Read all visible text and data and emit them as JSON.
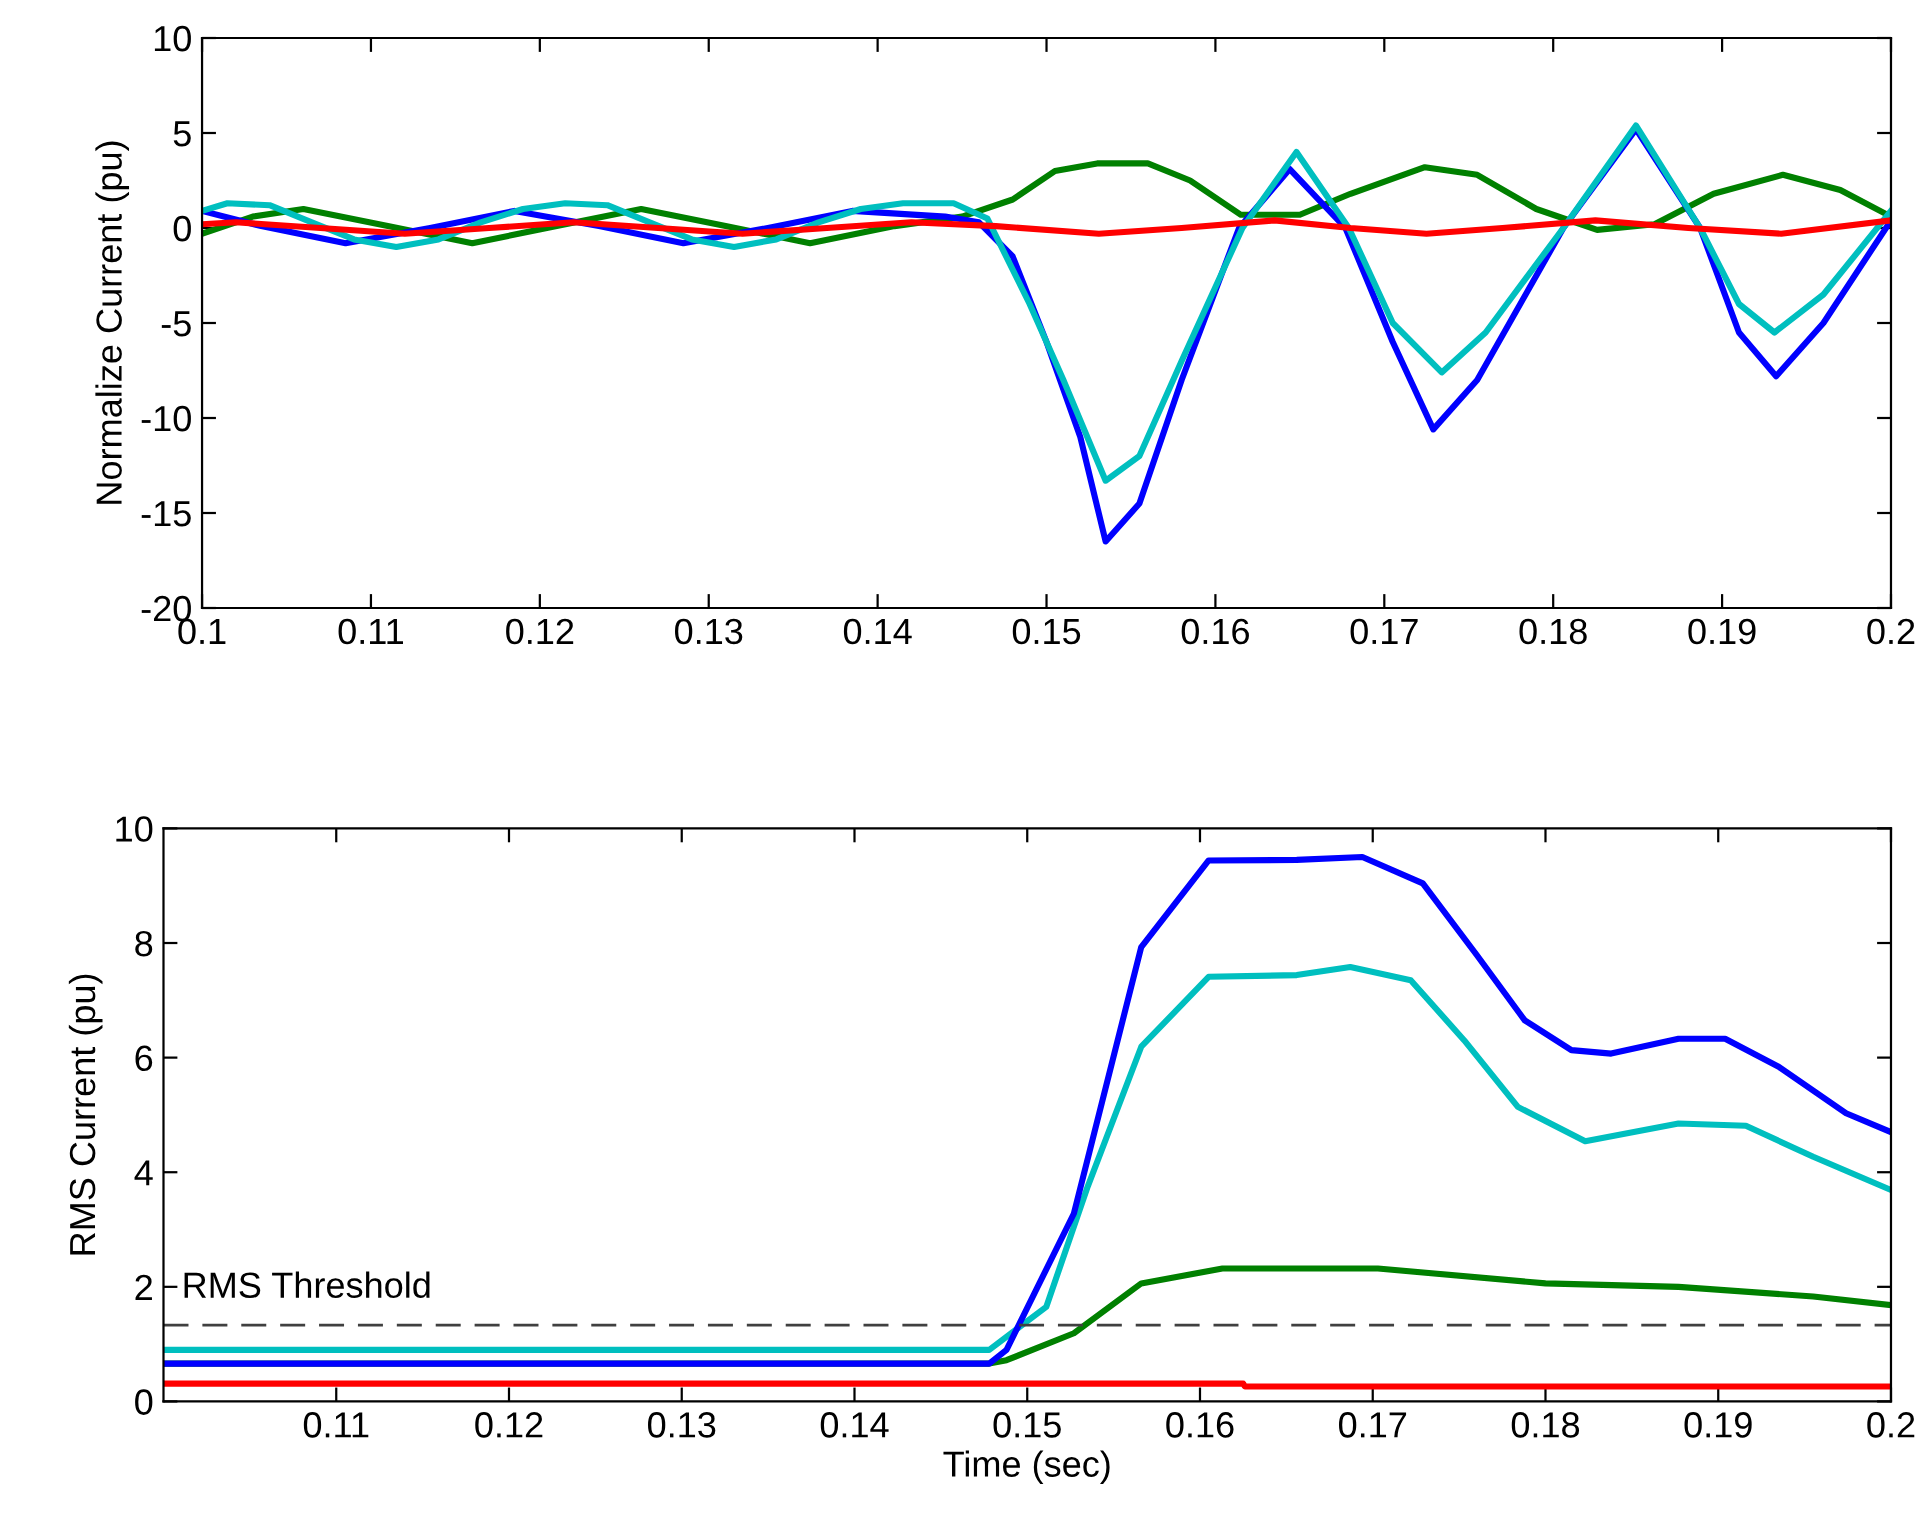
{
  "chart_data": [
    {
      "type": "line",
      "ylabel": "Normalize Current (pu)",
      "xlim": [
        0.1,
        0.2
      ],
      "ylim": [
        -20,
        10
      ],
      "xticks": [
        0.1,
        0.11,
        0.12,
        0.13,
        0.14,
        0.15,
        0.16,
        0.17,
        0.18,
        0.19,
        0.2
      ],
      "yticks": [
        -20,
        -15,
        -10,
        -5,
        0,
        5,
        10
      ],
      "grid": false,
      "legend": false,
      "line_style": "solid",
      "marker": "none",
      "series": [
        {
          "color": "#008000",
          "x": [
            0.1,
            0.103,
            0.106,
            0.111,
            0.116,
            0.121,
            0.126,
            0.131,
            0.136,
            0.141,
            0.145,
            0.148,
            0.1505,
            0.153,
            0.156,
            0.1585,
            0.1615,
            0.165,
            0.168,
            0.1724,
            0.1755,
            0.179,
            0.1826,
            0.186,
            0.1895,
            0.1936,
            0.197,
            0.2
          ],
          "values": [
            -0.3,
            0.6,
            1.0,
            0.1,
            -0.8,
            0.1,
            1.0,
            0.1,
            -0.8,
            0.1,
            0.6,
            1.5,
            3.0,
            3.4,
            3.4,
            2.5,
            0.7,
            0.7,
            1.8,
            3.2,
            2.8,
            1.0,
            -0.1,
            0.2,
            1.8,
            2.8,
            2.0,
            0.6
          ]
        },
        {
          "color": "#0000ff",
          "x": [
            0.1,
            0.1035,
            0.1085,
            0.1135,
            0.1185,
            0.1235,
            0.1285,
            0.1335,
            0.1385,
            0.144,
            0.146,
            0.148,
            0.15,
            0.152,
            0.1535,
            0.1555,
            0.158,
            0.1614,
            0.1644,
            0.1677,
            0.1705,
            0.1729,
            0.1755,
            0.1806,
            0.1849,
            0.1887,
            0.191,
            0.1932,
            0.196,
            0.2
          ],
          "values": [
            0.9,
            0.1,
            -0.8,
            0,
            0.9,
            0.1,
            -0.8,
            0,
            0.9,
            0.6,
            0.3,
            -1.5,
            -6,
            -11,
            -16.5,
            -14.5,
            -8,
            0,
            3.1,
            0,
            -6,
            -10.6,
            -8,
            0,
            5.2,
            0,
            -5.5,
            -7.8,
            -5,
            0.4
          ]
        },
        {
          "color": "#00bfbf",
          "x": [
            0.1,
            0.1015,
            0.104,
            0.1065,
            0.109,
            0.1115,
            0.114,
            0.1165,
            0.119,
            0.1215,
            0.124,
            0.1265,
            0.129,
            0.1315,
            0.134,
            0.1365,
            0.139,
            0.1415,
            0.1445,
            0.1465,
            0.149,
            0.151,
            0.1535,
            0.1555,
            0.158,
            0.1616,
            0.1648,
            0.1679,
            0.1705,
            0.1734,
            0.176,
            0.1806,
            0.1849,
            0.1887,
            0.191,
            0.1931,
            0.196,
            0.2
          ],
          "values": [
            0.9,
            1.3,
            1.2,
            0.3,
            -0.6,
            -1.0,
            -0.6,
            0.3,
            1.0,
            1.3,
            1.2,
            0.3,
            -0.6,
            -1.0,
            -0.6,
            0.3,
            1.0,
            1.3,
            1.3,
            0.5,
            -4,
            -8,
            -13.3,
            -12,
            -7,
            0,
            4.0,
            0,
            -5,
            -7.6,
            -5.5,
            0,
            5.4,
            0,
            -4,
            -5.5,
            -3.5,
            0.9
          ]
        },
        {
          "color": "#ff0000",
          "x": [
            0.1,
            0.102,
            0.107,
            0.112,
            0.117,
            0.122,
            0.127,
            0.132,
            0.137,
            0.142,
            0.147,
            0.1531,
            0.158,
            0.1635,
            0.168,
            0.1725,
            0.177,
            0.1825,
            0.188,
            0.1935,
            0.2
          ],
          "values": [
            0.2,
            0.3,
            0,
            -0.3,
            0,
            0.3,
            0,
            -0.3,
            0,
            0.3,
            0.1,
            -0.3,
            0,
            0.4,
            0,
            -0.3,
            0,
            0.4,
            0,
            -0.3,
            0.4
          ]
        }
      ]
    },
    {
      "type": "line",
      "xlabel": "Time (sec)",
      "ylabel": "RMS Current (pu)",
      "xlim": [
        0.1,
        0.2
      ],
      "ylim": [
        0,
        10
      ],
      "xticks": [
        0.11,
        0.12,
        0.13,
        0.14,
        0.15,
        0.16,
        0.17,
        0.18,
        0.19,
        0.2
      ],
      "yticks": [
        0,
        2,
        4,
        6,
        8,
        10
      ],
      "grid": false,
      "legend": false,
      "line_style": "solid",
      "marker": "none",
      "ref_lines": [
        {
          "axis": "y",
          "value": 1.33,
          "label": "RMS Threshold",
          "color": "#404040",
          "line_style": "dashed"
        }
      ],
      "series": [
        {
          "color": "#ff0000",
          "x": [
            0.1,
            0.1625,
            0.1626,
            0.2
          ],
          "values": [
            0.31,
            0.31,
            0.26,
            0.26
          ]
        },
        {
          "color": "#008000",
          "x": [
            0.1,
            0.1478,
            0.1488,
            0.1527,
            0.1566,
            0.1613,
            0.1703,
            0.18,
            0.1877,
            0.1955,
            0.2
          ],
          "values": [
            0.66,
            0.66,
            0.72,
            1.19,
            2.06,
            2.32,
            2.32,
            2.06,
            2.0,
            1.83,
            1.68
          ]
        },
        {
          "color": "#00bfbf",
          "x": [
            0.1,
            0.1478,
            0.1511,
            0.1535,
            0.1566,
            0.1605,
            0.1656,
            0.1687,
            0.1722,
            0.1753,
            0.1784,
            0.1823,
            0.1877,
            0.1916,
            0.1955,
            0.2
          ],
          "values": [
            0.9,
            0.9,
            1.65,
            3.75,
            6.19,
            7.41,
            7.44,
            7.58,
            7.35,
            6.3,
            5.14,
            4.54,
            4.85,
            4.81,
            4.27,
            3.69
          ]
        },
        {
          "color": "#0000ff",
          "x": [
            0.1,
            0.1478,
            0.1488,
            0.1527,
            0.1566,
            0.1605,
            0.1656,
            0.1694,
            0.1729,
            0.176,
            0.1788,
            0.1815,
            0.1838,
            0.1877,
            0.1904,
            0.1935,
            0.1974,
            0.2
          ],
          "values": [
            0.66,
            0.66,
            0.9,
            3.28,
            7.93,
            9.44,
            9.45,
            9.5,
            9.04,
            7.8,
            6.65,
            6.13,
            6.07,
            6.33,
            6.33,
            5.84,
            5.03,
            4.7
          ]
        }
      ]
    }
  ]
}
